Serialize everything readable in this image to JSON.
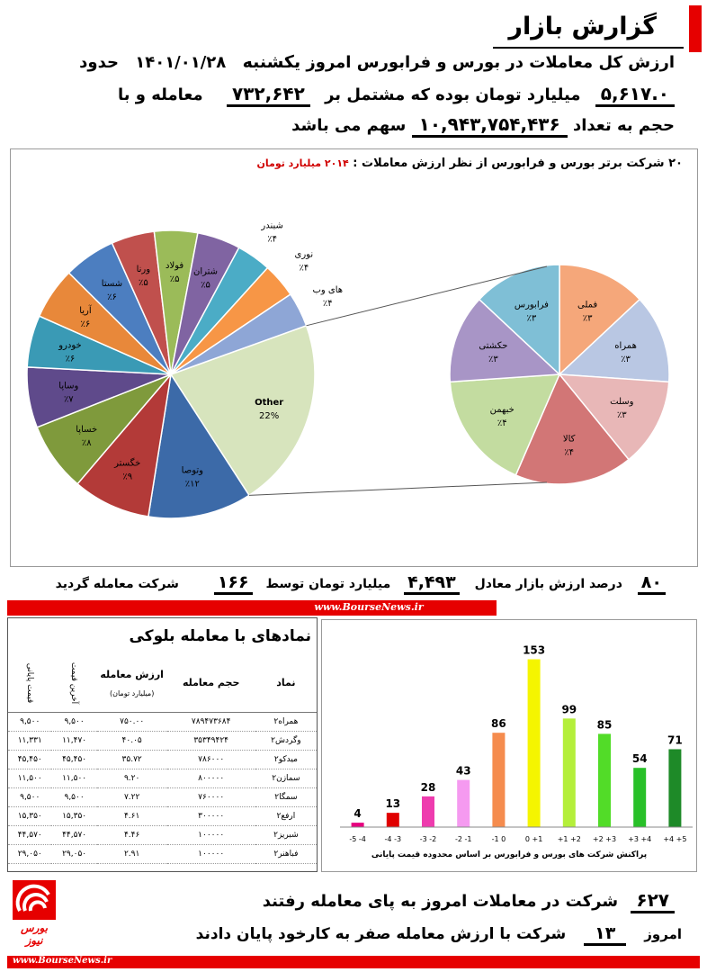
{
  "header": {
    "title": "گزارش بازار",
    "line1": "ارزش کل معاملات در بورس و فرابورس امروز",
    "day": "یکشنبه",
    "date": "۱۴۰۱/۰۱/۲۸",
    "about": "حدود",
    "total_value": "۵,۶۱۷.۰",
    "line2": "میلیارد تومان بوده که مشتمل بر",
    "trades": "۷۳۲,۶۴۲",
    "line2b": "معامله و با",
    "line3a": "حجم به تعداد",
    "volume": "۱۰,۹۴۳,۷۵۴,۴۳۶",
    "line3b": "سهم می باشد"
  },
  "pie_panel": {
    "title": "۲۰ شرکت برتر بورس و فرابورس از نظر ارزش معاملات :",
    "sum": "۲۰۱۴ میلیارد تومان"
  },
  "chart_data": [
    {
      "type": "pie",
      "name": "main-pie",
      "slices": [
        {
          "label": "Other",
          "pct": "22%",
          "value": 22,
          "color": "#d7e4bd"
        },
        {
          "label": "وتوصا",
          "pct": "٪۱۲",
          "value": 12,
          "color": "#3c6aa8"
        },
        {
          "label": "خگستر",
          "pct": "٪۹",
          "value": 9,
          "color": "#b33a38"
        },
        {
          "label": "خساپا",
          "pct": "٪۸",
          "value": 8,
          "color": "#7f9a3c"
        },
        {
          "label": "وساپا",
          "pct": "٪۷",
          "value": 7,
          "color": "#5f4a8b"
        },
        {
          "label": "خودرو",
          "pct": "٪۶",
          "value": 6,
          "color": "#3a9ab5"
        },
        {
          "label": "آریا",
          "pct": "٪۶",
          "value": 6,
          "color": "#e8883a"
        },
        {
          "label": "شستا",
          "pct": "٪۶",
          "value": 6,
          "color": "#4c7ec0"
        },
        {
          "label": "ورنا",
          "pct": "٪۵",
          "value": 5,
          "color": "#c0504d"
        },
        {
          "label": "فولاد",
          "pct": "٪۵",
          "value": 5,
          "color": "#9bbb59"
        },
        {
          "label": "شتران",
          "pct": "٪۵",
          "value": 5,
          "color": "#8064a2"
        },
        {
          "label": "شبندر",
          "pct": "٪۴",
          "value": 4,
          "color": "#4bacc6"
        },
        {
          "label": "نوری",
          "pct": "٪۴",
          "value": 4,
          "color": "#f79646"
        },
        {
          "label": "های وب",
          "pct": "٪۴",
          "value": 4,
          "color": "#8ea6d6"
        }
      ]
    },
    {
      "type": "pie",
      "name": "other-breakdown-pie",
      "slices": [
        {
          "label": "فملی",
          "pct": "٪۳",
          "value": 3,
          "color": "#f5a77a"
        },
        {
          "label": "همراه",
          "pct": "٪۳",
          "value": 3,
          "color": "#b9c7e3"
        },
        {
          "label": "وسلت",
          "pct": "٪۳",
          "value": 3,
          "color": "#e8b7b7"
        },
        {
          "label": "کالا",
          "pct": "٪۴",
          "value": 4,
          "color": "#d27676"
        },
        {
          "label": "خبهمن",
          "pct": "٪۴",
          "value": 4,
          "color": "#c3dca0"
        },
        {
          "label": "حکشتی",
          "pct": "٪۳",
          "value": 3,
          "color": "#a895c6"
        },
        {
          "label": "فرابورس",
          "pct": "٪۳",
          "value": 3,
          "color": "#7fbfd6"
        }
      ]
    },
    {
      "type": "bar",
      "name": "price-range-distribution",
      "categories": [
        "-5 -4",
        "-4 -3",
        "-3 -2",
        "-2 -1",
        "-1 0",
        "0 +1",
        "+1 +2",
        "+2 +3",
        "+3 +4",
        "+4 +5"
      ],
      "values": [
        4,
        13,
        28,
        43,
        86,
        153,
        99,
        85,
        54,
        71
      ],
      "colors": [
        "#e6007e",
        "#e00000",
        "#ee3cae",
        "#f59af0",
        "#f58c4e",
        "#f5f500",
        "#b4ef3a",
        "#52dc28",
        "#28c028",
        "#1e8a28"
      ],
      "xlabel": "پراکنش شرکت های بورس و فرابورس بر اساس محدوده قیمت پایانی",
      "ylim": [
        0,
        160
      ]
    }
  ],
  "summary": {
    "pct": "۸۰",
    "pct_text": "درصد ارزش بازار معادل",
    "value": "۴,۴۹۳",
    "value_text": "میلیارد تومان توسط",
    "count": "۱۶۶",
    "count_text": "شرکت معامله گردید"
  },
  "source_url": "www.BourseNews.ir",
  "block_table": {
    "title": "نمادهای با معامله بلوکی",
    "headers": {
      "symbol": "نماد",
      "volume": "حجم معامله",
      "value": "ارزش معامله",
      "value_unit": "(میلیارد تومان)",
      "last": "آخرین قیمت",
      "final": "قیمت پایانی"
    },
    "rows": [
      {
        "symbol": "همراه۲",
        "volume": "۷۸۹۴۷۳۶۸۴",
        "value": "۷۵۰.۰۰",
        "last": "۹,۵۰۰",
        "final": "۹,۵۰۰"
      },
      {
        "symbol": "وگردش۲",
        "volume": "۳۵۳۴۹۴۲۴",
        "value": "۴۰.۰۵",
        "last": "۱۱,۴۷۰",
        "final": "۱۱,۳۳۱"
      },
      {
        "symbol": "میدکو۲",
        "volume": "۷۸۶۰۰۰",
        "value": "۳۵.۷۲",
        "last": "۴۵,۴۵۰",
        "final": "۴۵,۴۵۰"
      },
      {
        "symbol": "سمازن۲",
        "volume": "۸۰۰۰۰۰",
        "value": "۹.۲۰",
        "last": "۱۱,۵۰۰",
        "final": "۱۱,۵۰۰"
      },
      {
        "symbol": "سمگا۲",
        "volume": "۷۶۰۰۰۰",
        "value": "۷.۲۲",
        "last": "۹,۵۰۰",
        "final": "۹,۵۰۰"
      },
      {
        "symbol": "ارفع۲",
        "volume": "۳۰۰۰۰۰",
        "value": "۴.۶۱",
        "last": "۱۵,۳۵۰",
        "final": "۱۵,۳۵۰"
      },
      {
        "symbol": "شبریز۲",
        "volume": "۱۰۰۰۰۰",
        "value": "۴.۴۶",
        "last": "۴۴,۵۷۰",
        "final": "۴۴,۵۷۰"
      },
      {
        "symbol": "فباهنر۲",
        "volume": "۱۰۰۰۰۰",
        "value": "۲.۹۱",
        "last": "۲۹,۰۵۰",
        "final": "۲۹,۰۵۰"
      }
    ]
  },
  "footer": {
    "traded_count": "۶۲۷",
    "traded_text": "شرکت در معاملات امروز به پای معامله رفتند",
    "today": "امروز",
    "zero_count": "۱۳",
    "zero_text": "شرکت با ارزش معامله صفر به کارخود پایان دادند",
    "logo_text": "بورس نیوز",
    "url": "www.BourseNews.ir"
  },
  "colors": {
    "accent_red": "#e60000",
    "sum_red": "#d00000"
  }
}
